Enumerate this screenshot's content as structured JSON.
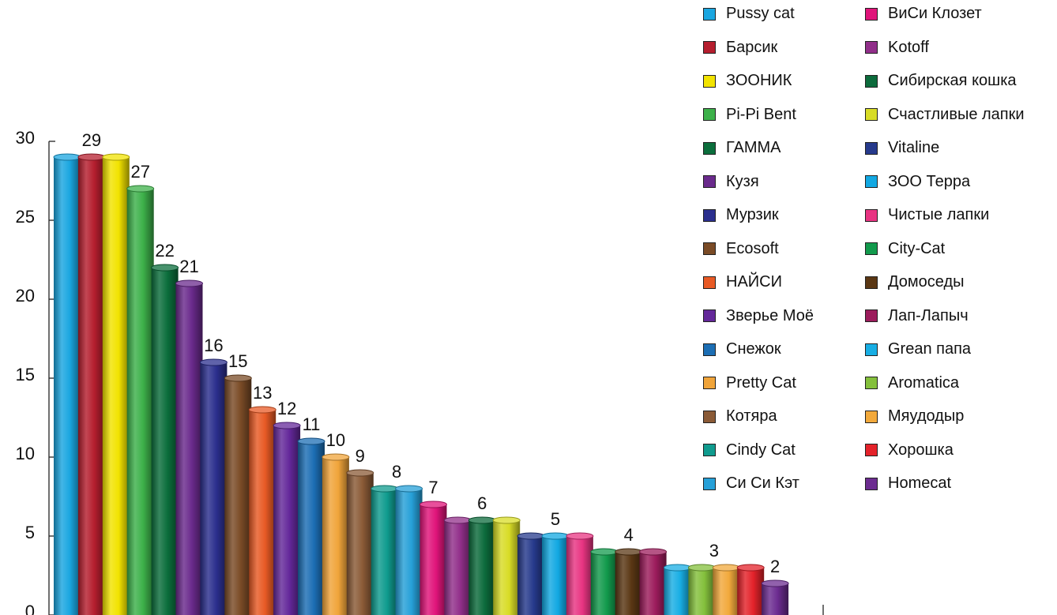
{
  "chart_data": {
    "type": "bar",
    "categories": [
      "Pussy cat",
      "Барсик",
      "ЗООНИК",
      "Pi-Pi Bent",
      "ГАММА",
      "Кузя",
      "Мурзик",
      "Ecosoft",
      "НАЙСИ",
      "Зверье Моё",
      "Снежок",
      "Pretty Cat",
      "Котяра",
      "Cindy Cat",
      "Си Си Кэт",
      "ВиСи Клозет",
      "Kotoff",
      "Сибирская кошка",
      "Счастливые лапки",
      "Vitaline",
      "ЗОО Терра",
      "Чистые лапки",
      "City-Cat",
      "Домоседы",
      "Лап-Лапыч",
      "Grean папа",
      "Aromatica",
      "Мяудодыр",
      "Хорошка",
      "Homecat"
    ],
    "values": [
      29,
      29,
      29,
      27,
      22,
      21,
      16,
      15,
      13,
      12,
      11,
      10,
      9,
      8,
      8,
      7,
      6,
      6,
      6,
      5,
      5,
      5,
      4,
      4,
      4,
      3,
      3,
      3,
      3,
      2
    ],
    "colors": [
      "#1aa6e0",
      "#b51e2e",
      "#f2e300",
      "#3db14a",
      "#0b6e3c",
      "#6a2a8c",
      "#2b2f8e",
      "#7a4b26",
      "#e85a25",
      "#64289a",
      "#1c6eb4",
      "#f0a43a",
      "#8a5a36",
      "#0f9b8e",
      "#26a0d8",
      "#e0147a",
      "#912f8a",
      "#0c6b3c",
      "#d8dc26",
      "#263a8c",
      "#12a8e2",
      "#e83482",
      "#129a4c",
      "#5a3714",
      "#9c1c5c",
      "#18aee4",
      "#84c03c",
      "#f2a93c",
      "#e4222a",
      "#6c2c90"
    ],
    "data_labels": [
      {
        "text": "29",
        "index": 1
      },
      {
        "text": "27",
        "index": 3
      },
      {
        "text": "22",
        "index": 4
      },
      {
        "text": "21",
        "index": 5
      },
      {
        "text": "16",
        "index": 6
      },
      {
        "text": "15",
        "index": 7
      },
      {
        "text": "13",
        "index": 8
      },
      {
        "text": "12",
        "index": 9
      },
      {
        "text": "11",
        "index": 10
      },
      {
        "text": "10",
        "index": 11
      },
      {
        "text": "9",
        "index": 12
      },
      {
        "text": "8",
        "index": 13.5
      },
      {
        "text": "7",
        "index": 15
      },
      {
        "text": "6",
        "index": 17
      },
      {
        "text": "5",
        "index": 20
      },
      {
        "text": "4",
        "index": 23
      },
      {
        "text": "3",
        "index": 26.5
      },
      {
        "text": "2",
        "index": 29
      }
    ],
    "y_ticks": [
      0,
      5,
      10,
      15,
      20,
      25,
      30
    ],
    "ylim": [
      0,
      30
    ],
    "title": "",
    "xlabel": "",
    "ylabel": "",
    "legend_position": "top-right",
    "grid": false
  }
}
